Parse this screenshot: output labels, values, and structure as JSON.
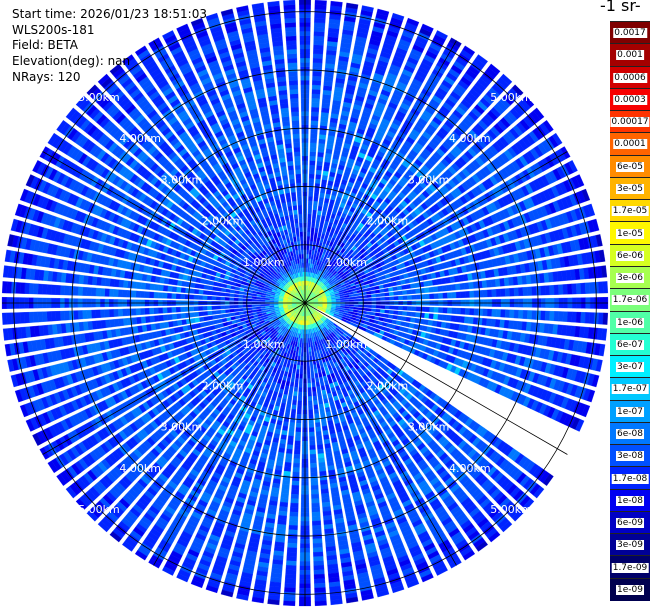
{
  "header": {
    "start_time": "Start time: 2026/01/23 18:51:03",
    "instrument": "WLS200s-181",
    "field": "Field: BETA",
    "elevation": "Elevation(deg): nan",
    "nrays": "NRays: 120"
  },
  "colorbar": {
    "units_text": "-1 sr-",
    "levels": [
      {
        "label": "0.0017",
        "color": "#7f0000"
      },
      {
        "label": "0.001",
        "color": "#a40000"
      },
      {
        "label": "0.0006",
        "color": "#d10000"
      },
      {
        "label": "0.0003",
        "color": "#f70000"
      },
      {
        "label": "0.00017",
        "color": "#ff3400"
      },
      {
        "label": "0.0001",
        "color": "#ff6400"
      },
      {
        "label": "6e-05",
        "color": "#ff8c00"
      },
      {
        "label": "3e-05",
        "color": "#ffb300"
      },
      {
        "label": "1.7e-05",
        "color": "#ffd800"
      },
      {
        "label": "1e-05",
        "color": "#fff700"
      },
      {
        "label": "6e-06",
        "color": "#d6ff21"
      },
      {
        "label": "3e-06",
        "color": "#a7ff50"
      },
      {
        "label": "1.7e-06",
        "color": "#7bff7b"
      },
      {
        "label": "1e-06",
        "color": "#50ffa7"
      },
      {
        "label": "6e-07",
        "color": "#24ffd3"
      },
      {
        "label": "3e-07",
        "color": "#00f0ff"
      },
      {
        "label": "1.7e-07",
        "color": "#00c8ff"
      },
      {
        "label": "1e-07",
        "color": "#00a0ff"
      },
      {
        "label": "6e-08",
        "color": "#0078ff"
      },
      {
        "label": "3e-08",
        "color": "#0050ff"
      },
      {
        "label": "1.7e-08",
        "color": "#0024ff"
      },
      {
        "label": "1e-08",
        "color": "#0000f1"
      },
      {
        "label": "6e-09",
        "color": "#0000c4"
      },
      {
        "label": "3e-09",
        "color": "#000096"
      },
      {
        "label": "1.7e-09",
        "color": "#000069"
      },
      {
        "label": "1e-09",
        "color": "#00004f"
      }
    ]
  },
  "chart_data": {
    "type": "polar-ppi",
    "field": "BETA",
    "nrays": 120,
    "max_range_km": 5.2,
    "range_rings_km": [
      1,
      2,
      3,
      4,
      5
    ],
    "range_ring_labels": [
      "1.00km",
      "2.00km",
      "3.00km",
      "4.00km",
      "5.00km"
    ],
    "label_azimuths_deg": [
      -45,
      45,
      135,
      225
    ],
    "spokes_deg": [
      0,
      30,
      60,
      90,
      120,
      150,
      180,
      210,
      240,
      270,
      300,
      330
    ],
    "missing_sector_deg": [
      117,
      123
    ],
    "range_profile": [
      {
        "r_km": 0.0,
        "level": 12
      },
      {
        "r_km": 0.2,
        "level": 12
      },
      {
        "r_km": 0.35,
        "level": 10
      },
      {
        "r_km": 0.45,
        "level": 15
      },
      {
        "r_km": 0.55,
        "level": 18
      },
      {
        "r_km": 0.7,
        "level": 20
      },
      {
        "r_km": 1.0,
        "level": 20
      },
      {
        "r_km": 2.0,
        "level": 19
      },
      {
        "r_km": 3.0,
        "level": 19
      },
      {
        "r_km": 4.0,
        "level": 19
      },
      {
        "r_km": 5.0,
        "level": 20
      },
      {
        "r_km": 5.2,
        "level": 21
      }
    ]
  }
}
